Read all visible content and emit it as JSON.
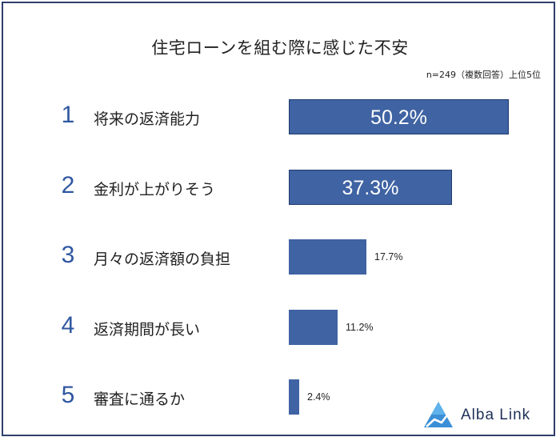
{
  "chart_data": {
    "type": "bar",
    "orientation": "horizontal",
    "title": "住宅ローンを組む際に感じた不安",
    "note": "n=249（複数回答）上位5位",
    "ranks": [
      "1",
      "2",
      "3",
      "4",
      "5"
    ],
    "categories": [
      "将来の返済能力",
      "金利が上がりそう",
      "月々の返済額の負担",
      "返済期間が長い",
      "審査に通るか"
    ],
    "values": [
      50.2,
      37.3,
      17.7,
      11.2,
      2.4
    ],
    "value_labels": [
      "50.2%",
      "37.3%",
      "17.7%",
      "11.2%",
      "2.4%"
    ],
    "xlim": [
      0,
      50.2
    ],
    "bar_color": "#3f63a3",
    "rank_color": "#2f57a0",
    "grid": false,
    "legend": "none"
  },
  "brand": {
    "name": "Alba Link",
    "color": "#1f2f57"
  }
}
